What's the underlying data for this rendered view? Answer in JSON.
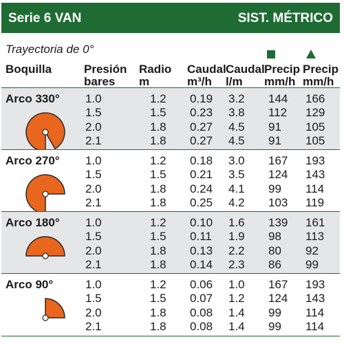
{
  "header": {
    "series": "Serie 6 VAN",
    "system": "SIST. MÉTRICO"
  },
  "trajectory": "Trayectoria de 0°",
  "columns": {
    "nozzle": "Boquilla",
    "pressure": [
      "Presión",
      "bares"
    ],
    "radius": [
      "Radio",
      "m"
    ],
    "flow_m3h": [
      "Caudal",
      "m³/h"
    ],
    "flow_lm": [
      "Caudal",
      "l/m"
    ],
    "precip_square": [
      "Precip",
      "mm/h"
    ],
    "precip_triangle": [
      "Precip",
      "mm/h"
    ]
  },
  "icons": {
    "square": "square-symbol",
    "triangle": "triangle-symbol"
  },
  "colors": {
    "header_green": "#1f6b34",
    "arc_orange": "#e8661d",
    "row_shade": "#e5e6e7"
  },
  "arcs": [
    {
      "label": "Arco 330°",
      "degrees": 330,
      "shaded": true,
      "rows": [
        [
          "1.0",
          "1.2",
          "0.19",
          "3.2",
          "144",
          "166"
        ],
        [
          "1.5",
          "1.5",
          "0.23",
          "3.8",
          "112",
          "129"
        ],
        [
          "2.0",
          "1.8",
          "0.27",
          "4.5",
          "91",
          "105"
        ],
        [
          "2.1",
          "1.8",
          "0.27",
          "4.5",
          "91",
          "105"
        ]
      ]
    },
    {
      "label": "Arco 270°",
      "degrees": 270,
      "shaded": false,
      "rows": [
        [
          "1.0",
          "1.2",
          "0.18",
          "3.0",
          "167",
          "193"
        ],
        [
          "1.5",
          "1.5",
          "0.21",
          "3.5",
          "124",
          "143"
        ],
        [
          "2.0",
          "1.8",
          "0.24",
          "4.1",
          "99",
          "114"
        ],
        [
          "2.1",
          "1.8",
          "0.25",
          "4.2",
          "103",
          "119"
        ]
      ]
    },
    {
      "label": "Arco 180°",
      "degrees": 180,
      "shaded": true,
      "rows": [
        [
          "1.0",
          "1.2",
          "0.10",
          "1.6",
          "139",
          "161"
        ],
        [
          "1.5",
          "1.5",
          "0.11",
          "1.9",
          "98",
          "113"
        ],
        [
          "2.0",
          "1.8",
          "0.13",
          "2.2",
          "80",
          "92"
        ],
        [
          "2.1",
          "1.8",
          "0.14",
          "2.3",
          "86",
          "99"
        ]
      ]
    },
    {
      "label": "Arco 90°",
      "degrees": 90,
      "shaded": false,
      "rows": [
        [
          "1.0",
          "1.2",
          "0.06",
          "1.0",
          "167",
          "193"
        ],
        [
          "1.5",
          "1.5",
          "0.07",
          "1.2",
          "124",
          "143"
        ],
        [
          "2.0",
          "1.8",
          "0.08",
          "1.4",
          "99",
          "114"
        ],
        [
          "2.1",
          "1.8",
          "0.08",
          "1.4",
          "99",
          "114"
        ]
      ]
    }
  ]
}
